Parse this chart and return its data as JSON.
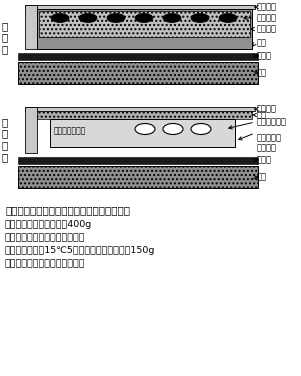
{
  "title": "図１　「箱なし苗」の平置き出芽法の模式図",
  "caption_lines": [
    "覆土：肥料入り粒状培土400g",
    "もみがら成型マット：肥料入り",
    "浸種乾燥種子：15℃5日間浸漬した後乾燥，150g",
    "接着剤：ポリビニルアルコール"
  ],
  "left_label_top": "土\n付\n苗",
  "left_label_bottom": "箱\nな\nし\n苗",
  "top_labels": [
    "被覆資材",
    "催芽種子",
    "育苗培土",
    "苗箱",
    "シート",
    "苗床"
  ],
  "bot_labels": [
    "被覆資材",
    "覆土",
    "浸種乾燥種子",
    "もみがら成\n形マット",
    "シート",
    "苗床"
  ],
  "mat_label": "種子付きマット",
  "bg": "#ffffff",
  "cover_color": "#c8c8c8",
  "tray_color": "#909090",
  "soil_color": "#b4b4b4",
  "soil_dot_color": "#c0c0c0",
  "sheet_color": "#1a1a1a",
  "bed_color": "#909090",
  "mat_color": "#d8d8d8",
  "fuku_color": "#b0b0b0"
}
